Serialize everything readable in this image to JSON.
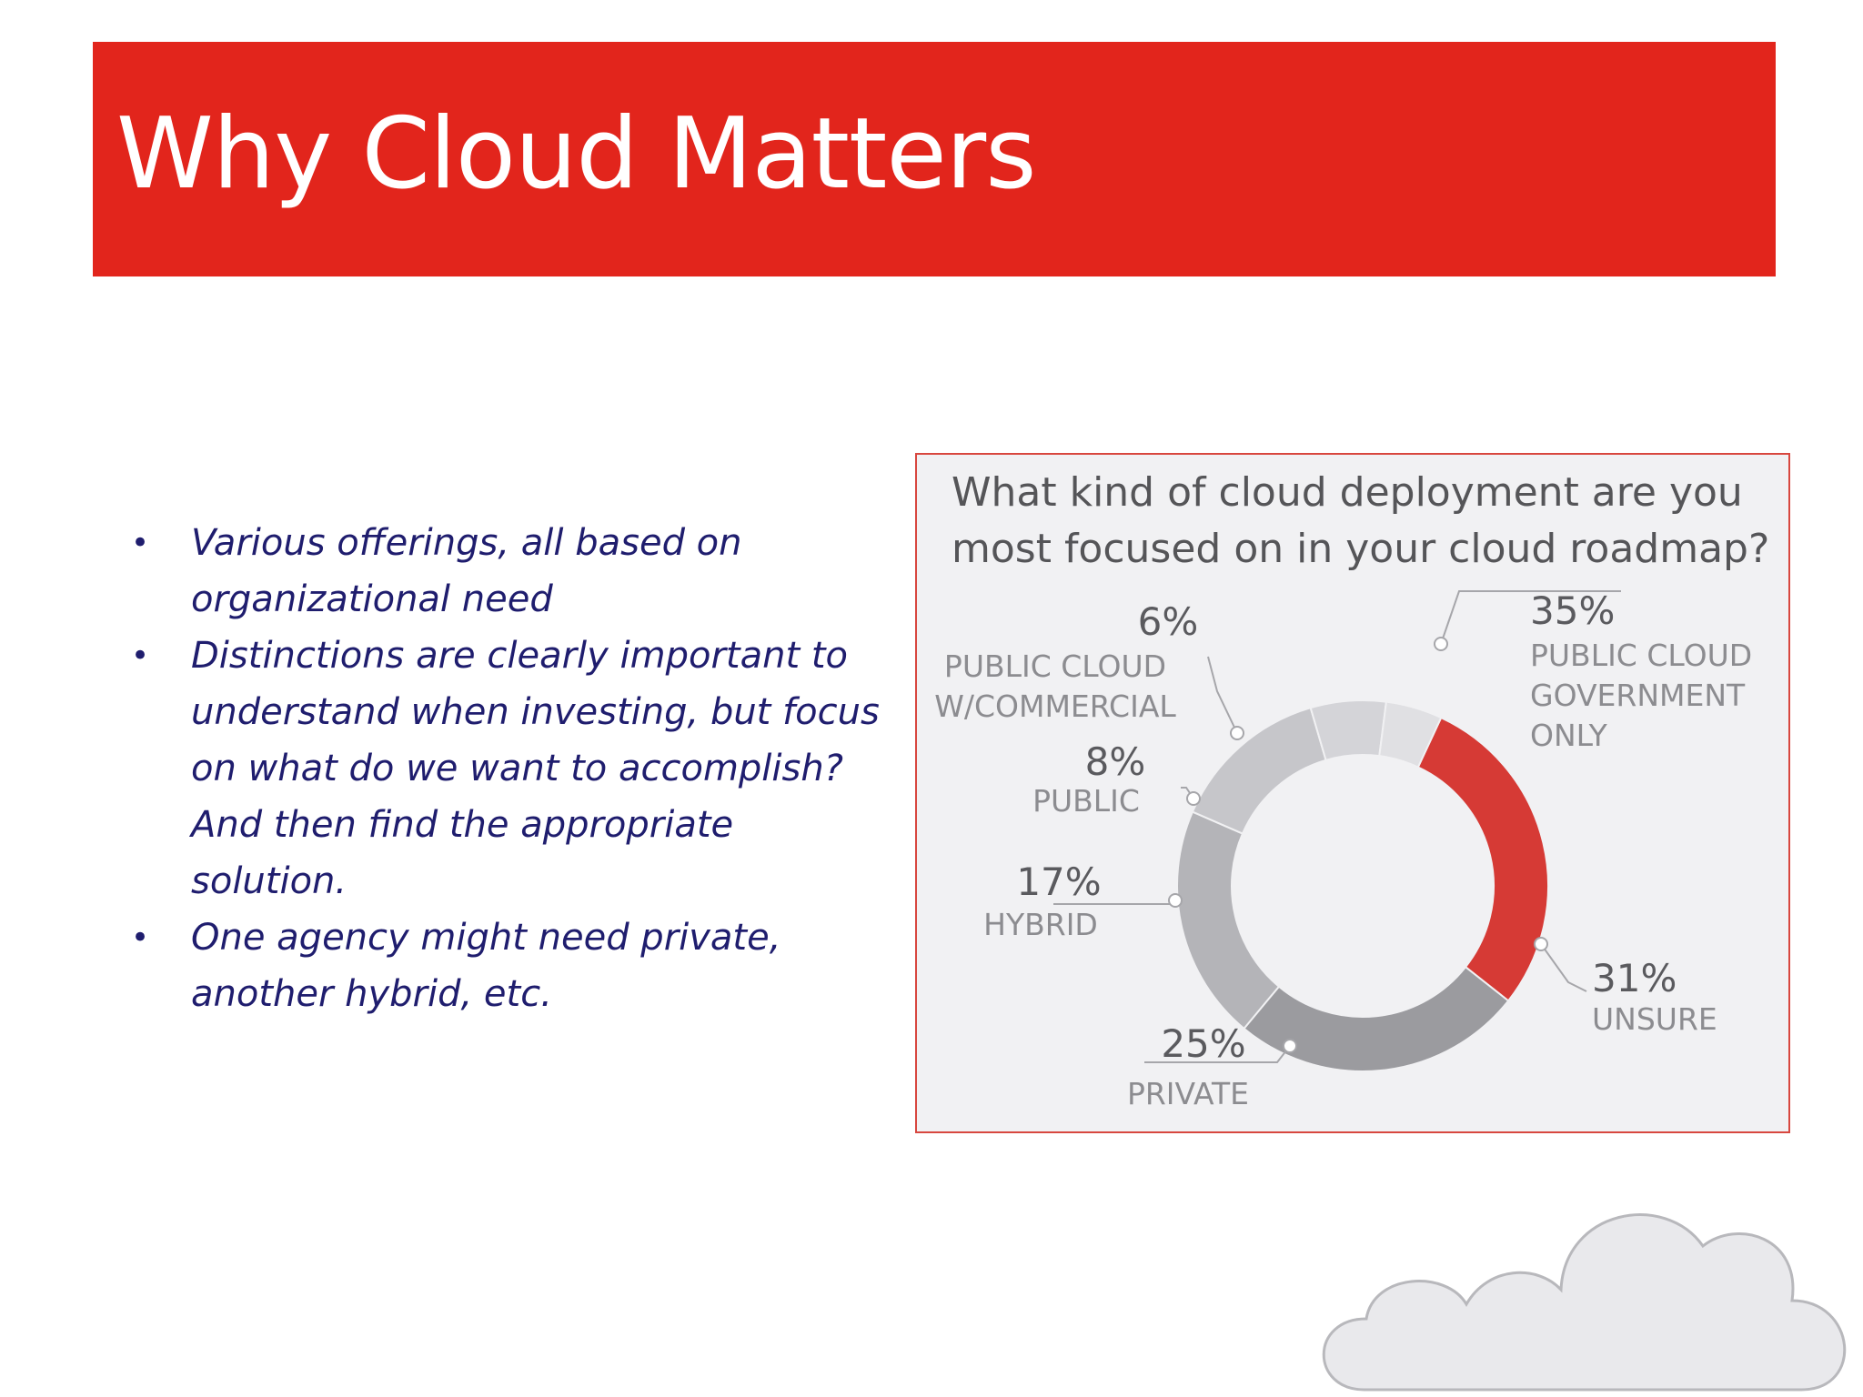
{
  "slide": {
    "title": "Why Cloud Matters",
    "bullets": [
      "Various offerings, all based on organizational need",
      "Distinctions are clearly important to understand when investing, but focus on what do we want to accomplish? And then find the appropriate solution.",
      "One agency might need private, another hybrid, etc."
    ],
    "bullet_glyph": "•"
  },
  "colors": {
    "banner": "#e2251c",
    "bullet_text": "#1f1d6e",
    "highlight_segment": "#d63a35"
  },
  "chart_data": {
    "type": "pie",
    "donut": true,
    "title_lines": [
      "What kind of cloud deployment are you",
      "most focused on in your cloud roadmap?"
    ],
    "slices": [
      {
        "label_lines": [
          "PUBLIC CLOUD",
          "GOVERNMENT",
          "ONLY"
        ],
        "value": 35,
        "value_label": "35%",
        "color": "#d63a35"
      },
      {
        "label_lines": [
          "UNSURE"
        ],
        "value": 31,
        "value_label": "31%",
        "color": "#9b9b9f"
      },
      {
        "label_lines": [
          "PRIVATE"
        ],
        "value": 25,
        "value_label": "25%",
        "color": "#b4b4b8"
      },
      {
        "label_lines": [
          "HYBRID"
        ],
        "value": 17,
        "value_label": "17%",
        "color": "#c6c6ca"
      },
      {
        "label_lines": [
          "PUBLIC"
        ],
        "value": 8,
        "value_label": "8%",
        "color": "#d4d4d8"
      },
      {
        "label_lines": [
          "PUBLIC CLOUD",
          "W/COMMERCIAL"
        ],
        "value": 6,
        "value_label": "6%",
        "color": "#e0e0e3"
      }
    ],
    "legend": "none"
  },
  "decor": {
    "cloud_icon": "cloud-outline"
  }
}
